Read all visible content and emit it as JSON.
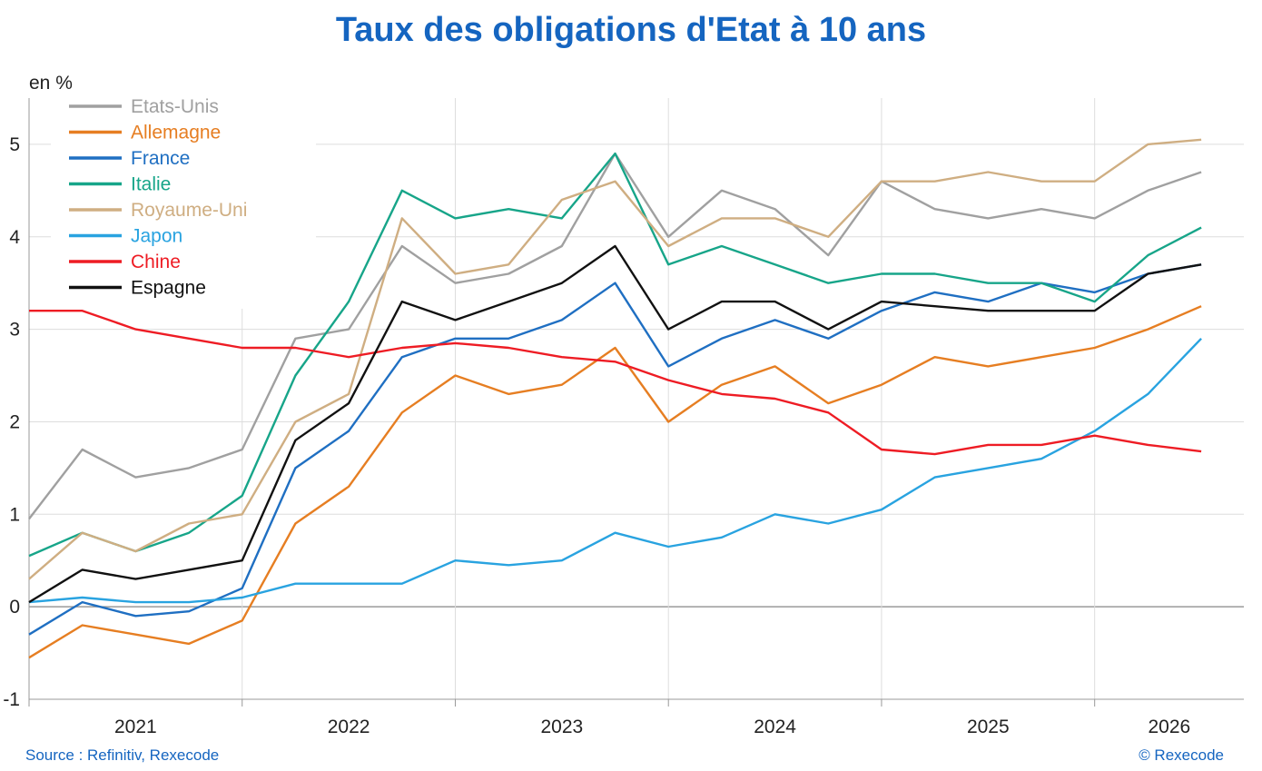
{
  "title": "Taux des obligations d'Etat à 10 ans",
  "source": "Source : Refinitiv, Rexecode",
  "copyright": "© Rexecode",
  "chart_data": {
    "type": "line",
    "title": "Taux des obligations d'Etat à 10 ans",
    "ylabel": "en %",
    "xlabel": "",
    "x_ticks": [
      "2021",
      "2022",
      "2023",
      "2024",
      "2025",
      "2026"
    ],
    "y_ticks": [
      -1,
      0,
      1,
      2,
      3,
      4,
      5
    ],
    "ylim": [
      -1,
      5.5
    ],
    "xlim": [
      2021.0,
      2026.7
    ],
    "grid": true,
    "legend_position": "top-left",
    "x": [
      2021.0,
      2021.25,
      2021.5,
      2021.75,
      2022.0,
      2022.25,
      2022.5,
      2022.75,
      2023.0,
      2023.25,
      2023.5,
      2023.75,
      2024.0,
      2024.25,
      2024.5,
      2024.75,
      2025.0,
      2025.25,
      2025.5,
      2025.75,
      2026.0,
      2026.25,
      2026.5
    ],
    "series": [
      {
        "name": "Etats-Unis",
        "color": "#a0a0a0",
        "values": [
          0.95,
          1.7,
          1.4,
          1.5,
          1.7,
          2.9,
          3.0,
          3.9,
          3.5,
          3.6,
          3.9,
          4.9,
          4.0,
          4.5,
          4.3,
          3.8,
          4.6,
          4.3,
          4.2,
          4.3,
          4.2,
          4.5,
          4.7
        ]
      },
      {
        "name": "Allemagne",
        "color": "#e67e22",
        "values": [
          -0.55,
          -0.2,
          -0.3,
          -0.4,
          -0.15,
          0.9,
          1.3,
          2.1,
          2.5,
          2.3,
          2.4,
          2.8,
          2.0,
          2.4,
          2.6,
          2.2,
          2.4,
          2.7,
          2.6,
          2.7,
          2.8,
          3.0,
          3.25
        ]
      },
      {
        "name": "France",
        "color": "#1f6fc2",
        "values": [
          -0.3,
          0.05,
          -0.1,
          -0.05,
          0.2,
          1.5,
          1.9,
          2.7,
          2.9,
          2.9,
          3.1,
          3.5,
          2.6,
          2.9,
          3.1,
          2.9,
          3.2,
          3.4,
          3.3,
          3.5,
          3.4,
          3.6,
          3.7
        ]
      },
      {
        "name": "Italie",
        "color": "#17a589",
        "values": [
          0.55,
          0.8,
          0.6,
          0.8,
          1.2,
          2.5,
          3.3,
          4.5,
          4.2,
          4.3,
          4.2,
          4.9,
          3.7,
          3.9,
          3.7,
          3.5,
          3.6,
          3.6,
          3.5,
          3.5,
          3.3,
          3.8,
          4.1
        ]
      },
      {
        "name": "Royaume-Uni",
        "color": "#cfae82",
        "values": [
          0.3,
          0.8,
          0.6,
          0.9,
          1.0,
          2.0,
          2.3,
          4.2,
          3.6,
          3.7,
          4.4,
          4.6,
          3.9,
          4.2,
          4.2,
          4.0,
          4.6,
          4.6,
          4.7,
          4.6,
          4.6,
          5.0,
          5.05
        ]
      },
      {
        "name": "Japon",
        "color": "#29a3e0",
        "values": [
          0.05,
          0.1,
          0.05,
          0.05,
          0.1,
          0.25,
          0.25,
          0.25,
          0.5,
          0.45,
          0.5,
          0.8,
          0.65,
          0.75,
          1.0,
          0.9,
          1.05,
          1.4,
          1.5,
          1.6,
          1.9,
          2.3,
          2.9
        ]
      },
      {
        "name": "Chine",
        "color": "#ee1c24",
        "values": [
          3.2,
          3.2,
          3.0,
          2.9,
          2.8,
          2.8,
          2.7,
          2.8,
          2.85,
          2.8,
          2.7,
          2.65,
          2.45,
          2.3,
          2.25,
          2.1,
          1.7,
          1.65,
          1.75,
          1.75,
          1.85,
          1.75,
          1.68
        ]
      },
      {
        "name": "Espagne",
        "color": "#111111",
        "values": [
          0.05,
          0.4,
          0.3,
          0.4,
          0.5,
          1.8,
          2.2,
          3.3,
          3.1,
          3.3,
          3.5,
          3.9,
          3.0,
          3.3,
          3.3,
          3.0,
          3.3,
          3.25,
          3.2,
          3.2,
          3.2,
          3.6,
          3.7
        ]
      }
    ]
  }
}
